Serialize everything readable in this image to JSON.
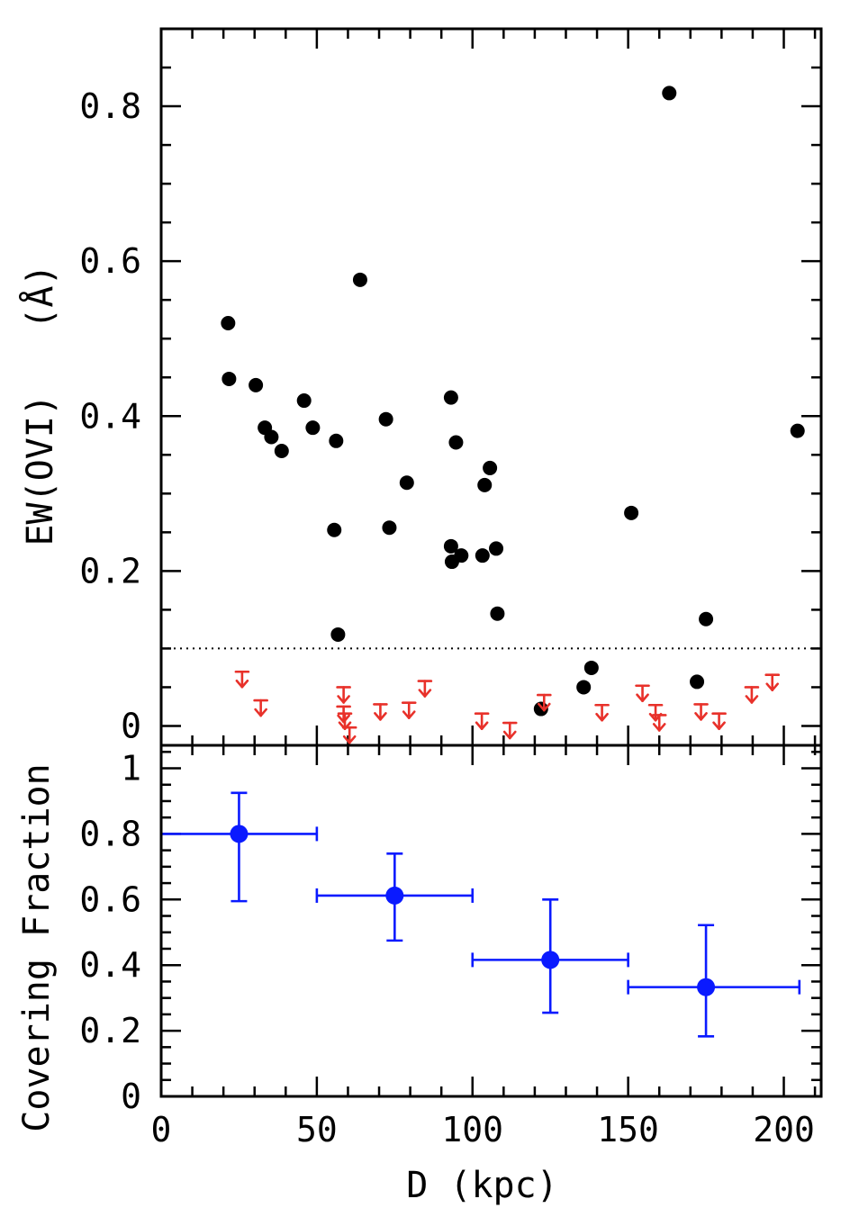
{
  "chart_data": [
    {
      "type": "scatter",
      "panel": "top",
      "xlabel": "D (kpc)",
      "ylabel": "EW(OVI)   (Å)",
      "xlim": [
        0,
        212
      ],
      "ylim": [
        -0.025,
        0.9
      ],
      "x_ticks": [
        "0",
        "50",
        "100",
        "150",
        "200"
      ],
      "y_ticks": [
        "0",
        "0.2",
        "0.4",
        "0.6",
        "0.8"
      ],
      "threshold": 0.1,
      "detections": [
        {
          "x": 21.5,
          "y": 0.52
        },
        {
          "x": 21.8,
          "y": 0.448
        },
        {
          "x": 30.4,
          "y": 0.44
        },
        {
          "x": 33.3,
          "y": 0.385
        },
        {
          "x": 35.4,
          "y": 0.373
        },
        {
          "x": 38.7,
          "y": 0.355
        },
        {
          "x": 45.9,
          "y": 0.42
        },
        {
          "x": 48.7,
          "y": 0.385
        },
        {
          "x": 55.6,
          "y": 0.253
        },
        {
          "x": 56.2,
          "y": 0.368
        },
        {
          "x": 56.8,
          "y": 0.118
        },
        {
          "x": 63.9,
          "y": 0.576
        },
        {
          "x": 72.2,
          "y": 0.396
        },
        {
          "x": 73.3,
          "y": 0.256
        },
        {
          "x": 78.9,
          "y": 0.314
        },
        {
          "x": 93.1,
          "y": 0.424
        },
        {
          "x": 93.1,
          "y": 0.232
        },
        {
          "x": 93.4,
          "y": 0.212
        },
        {
          "x": 94.7,
          "y": 0.366
        },
        {
          "x": 96.4,
          "y": 0.22
        },
        {
          "x": 103.2,
          "y": 0.22
        },
        {
          "x": 103.9,
          "y": 0.311
        },
        {
          "x": 105.6,
          "y": 0.333
        },
        {
          "x": 107.6,
          "y": 0.229
        },
        {
          "x": 108.0,
          "y": 0.145
        },
        {
          "x": 122.0,
          "y": 0.022
        },
        {
          "x": 135.7,
          "y": 0.05
        },
        {
          "x": 138.2,
          "y": 0.075
        },
        {
          "x": 151.0,
          "y": 0.275
        },
        {
          "x": 163.2,
          "y": 0.817
        },
        {
          "x": 172.1,
          "y": 0.057
        },
        {
          "x": 175.0,
          "y": 0.138
        },
        {
          "x": 204.4,
          "y": 0.381
        }
      ],
      "upper_limits": [
        {
          "x": 26.0,
          "y": 0.07
        },
        {
          "x": 32.0,
          "y": 0.033
        },
        {
          "x": 58.6,
          "y": 0.05
        },
        {
          "x": 58.6,
          "y": 0.025
        },
        {
          "x": 59.0,
          "y": 0.016
        },
        {
          "x": 60.5,
          "y": -0.002
        },
        {
          "x": 70.4,
          "y": 0.028
        },
        {
          "x": 79.6,
          "y": 0.03
        },
        {
          "x": 84.7,
          "y": 0.058
        },
        {
          "x": 103.0,
          "y": 0.016
        },
        {
          "x": 112.0,
          "y": 0.004
        },
        {
          "x": 123.0,
          "y": 0.04
        },
        {
          "x": 141.6,
          "y": 0.027
        },
        {
          "x": 154.6,
          "y": 0.052
        },
        {
          "x": 158.8,
          "y": 0.027
        },
        {
          "x": 160.0,
          "y": 0.014
        },
        {
          "x": 173.4,
          "y": 0.028
        },
        {
          "x": 179.2,
          "y": 0.016
        },
        {
          "x": 189.7,
          "y": 0.05
        },
        {
          "x": 196.3,
          "y": 0.066
        }
      ]
    },
    {
      "type": "scatter",
      "panel": "bottom",
      "xlabel": "D (kpc)",
      "ylabel": "Covering Fraction",
      "xlim": [
        0,
        212
      ],
      "ylim": [
        0,
        1.07
      ],
      "x_ticks": [
        "0",
        "50",
        "100",
        "150",
        "200"
      ],
      "y_ticks": [
        "0",
        "0.2",
        "0.4",
        "0.6",
        "0.8",
        "1"
      ],
      "points": [
        {
          "x": 25,
          "y": 0.8,
          "xerr": [
            0,
            50
          ],
          "yerr": [
            0.595,
            0.925
          ]
        },
        {
          "x": 75,
          "y": 0.612,
          "xerr": [
            50,
            100
          ],
          "yerr": [
            0.475,
            0.74
          ]
        },
        {
          "x": 125,
          "y": 0.416,
          "xerr": [
            100,
            150
          ],
          "yerr": [
            0.255,
            0.6
          ]
        },
        {
          "x": 175,
          "y": 0.333,
          "xerr": [
            150,
            205
          ],
          "yerr": [
            0.183,
            0.522
          ]
        }
      ]
    }
  ],
  "colors": {
    "detection": "#000000",
    "upper_limit": "#e8312a",
    "covering": "#0a1aff",
    "axis": "#000000"
  }
}
